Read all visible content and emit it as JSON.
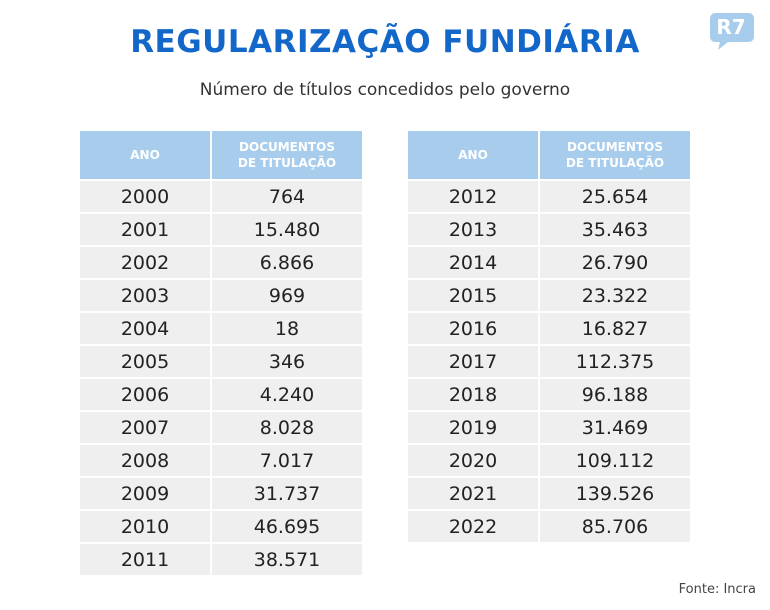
{
  "header": {
    "title": "REGULARIZAÇÃO FUNDIÁRIA",
    "subtitle": "Número de títulos concedidos pelo governo"
  },
  "logo": {
    "text": "R7",
    "color": "#a8cdec"
  },
  "colors": {
    "title": "#1267c9",
    "header_bg": "#a8cdec",
    "row_bg": "#efefef"
  },
  "chart_data": {
    "type": "table",
    "title": "REGULARIZAÇÃO FUNDIÁRIA",
    "subtitle": "Número de títulos concedidos pelo governo",
    "columns": [
      "ANO",
      "DOCUMENTOS DE TITULAÇÃO"
    ],
    "tables": [
      {
        "headers": [
          "ANO",
          "DOCUMENTOS DE TITULAÇÃO"
        ],
        "rows": [
          [
            "2000",
            "764"
          ],
          [
            "2001",
            "15.480"
          ],
          [
            "2002",
            "6.866"
          ],
          [
            "2003",
            "969"
          ],
          [
            "2004",
            "18"
          ],
          [
            "2005",
            "346"
          ],
          [
            "2006",
            "4.240"
          ],
          [
            "2007",
            "8.028"
          ],
          [
            "2008",
            "7.017"
          ],
          [
            "2009",
            "31.737"
          ],
          [
            "2010",
            "46.695"
          ],
          [
            "2011",
            "38.571"
          ]
        ]
      },
      {
        "headers": [
          "ANO",
          "DOCUMENTOS DE TITULAÇÃO"
        ],
        "rows": [
          [
            "2012",
            "25.654"
          ],
          [
            "2013",
            "35.463"
          ],
          [
            "2014",
            "26.790"
          ],
          [
            "2015",
            "23.322"
          ],
          [
            "2016",
            "16.827"
          ],
          [
            "2017",
            "112.375"
          ],
          [
            "2018",
            "96.188"
          ],
          [
            "2019",
            "31.469"
          ],
          [
            "2020",
            "109.112"
          ],
          [
            "2021",
            "139.526"
          ],
          [
            "2022",
            "85.706"
          ]
        ]
      }
    ],
    "years": [
      2000,
      2001,
      2002,
      2003,
      2004,
      2005,
      2006,
      2007,
      2008,
      2009,
      2010,
      2011,
      2012,
      2013,
      2014,
      2015,
      2016,
      2017,
      2018,
      2019,
      2020,
      2021,
      2022
    ],
    "values": [
      764,
      15480,
      6866,
      969,
      18,
      346,
      4240,
      8028,
      7017,
      31737,
      46695,
      38571,
      25654,
      35463,
      26790,
      23322,
      16827,
      112375,
      96188,
      31469,
      109112,
      139526,
      85706
    ]
  },
  "footer": {
    "source": "Fonte: Incra"
  }
}
